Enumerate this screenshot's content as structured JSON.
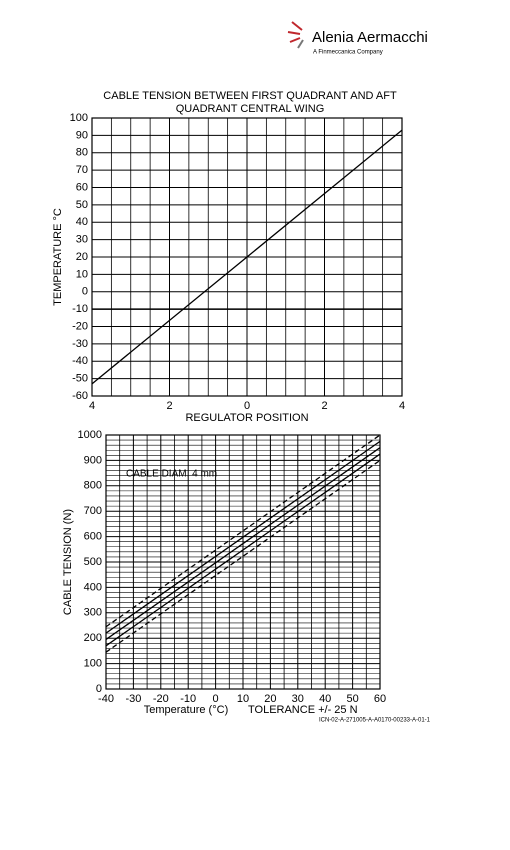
{
  "header": {
    "brand": "Alenia Aermacchi",
    "subtitle": "A Finmeccanica Company"
  },
  "chart_data": [
    {
      "type": "line",
      "title": "CABLE TENSION BETWEEN FIRST QUADRANT AND AFT QUADRANT CENTRAL WING",
      "x_label": "REGULATOR POSITION",
      "y_label": "TEMPERATURE °C",
      "x": [
        -4,
        4
      ],
      "series": [
        {
          "color": "#000000",
          "style": "solid",
          "values": [
            -53,
            93
          ]
        }
      ],
      "xlim": [
        -4,
        4
      ],
      "xticks": [
        {
          "value": -4,
          "label": "4"
        },
        {
          "value": -2,
          "label": "2"
        },
        0,
        2,
        4
      ],
      "ylim": [
        -60,
        100
      ],
      "yticks": [
        -60,
        -50,
        -40,
        -30,
        -20,
        -10,
        0,
        10,
        20,
        30,
        40,
        50,
        60,
        70,
        80,
        90,
        100
      ],
      "grid": true,
      "hline": -10
    },
    {
      "type": "line",
      "x_label": "Temperature (°C)",
      "y_label": "CABLE TENSION (N)",
      "annotation": "CABLE DIAM.  4 mm",
      "note": "TOLERANCE +/- 25 N",
      "x": [
        -40,
        60
      ],
      "series": [
        {
          "color": "#000000",
          "style": "dashed",
          "values": [
            145,
            900
          ]
        },
        {
          "color": "#000000",
          "style": "solid",
          "values": [
            170,
            925
          ]
        },
        {
          "color": "#000000",
          "style": "solid",
          "values": [
            195,
            950
          ]
        },
        {
          "color": "#000000",
          "style": "solid",
          "values": [
            220,
            975
          ]
        },
        {
          "color": "#000000",
          "style": "dashed",
          "values": [
            245,
            1000
          ]
        }
      ],
      "xlim": [
        -40,
        60
      ],
      "xticks": [
        -40,
        -30,
        -20,
        -10,
        0,
        10,
        20,
        30,
        40,
        50,
        60
      ],
      "ylim": [
        0,
        1000
      ],
      "yticks": [
        0,
        100,
        200,
        300,
        400,
        500,
        600,
        700,
        800,
        900,
        1000
      ],
      "grid": true
    }
  ],
  "footer": {
    "code": "ICN-02-A-271005-A-A0170-00233-A-01-1"
  }
}
